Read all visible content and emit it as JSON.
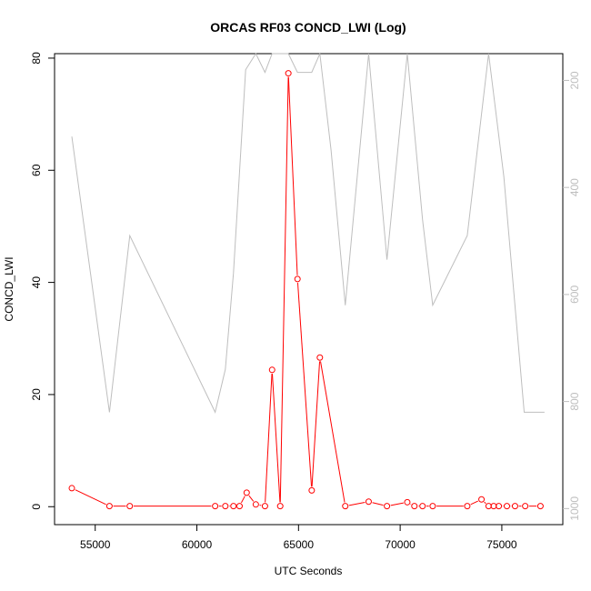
{
  "chart_data": {
    "type": "line",
    "title": "ORCAS RF03 CONCD_LWI (Log)",
    "xlabel": "UTC Seconds",
    "ylabel": "CONCD_LWI",
    "xlim": [
      53000,
      78000
    ],
    "ylim": [
      -3.2,
      80.8
    ],
    "x_ticks": [
      55000,
      60000,
      65000,
      70000,
      75000
    ],
    "y_ticks": [
      0,
      20,
      40,
      60,
      80
    ],
    "right_axis": {
      "ylim": [
        1030,
        150
      ],
      "ticks": [
        200,
        400,
        600,
        800,
        1000
      ],
      "color": "#bebebe",
      "reversed": true
    },
    "grid": false,
    "series": [
      {
        "color": "#ff0000",
        "markers": "open-circle",
        "axis": "left",
        "x": [
          53850,
          55700,
          56700,
          60900,
          61400,
          61800,
          62100,
          62450,
          62900,
          63350,
          63700,
          64100,
          64500,
          64950,
          65650,
          66050,
          67300,
          68450,
          69350,
          70350,
          70700,
          71100,
          71600,
          73300,
          74000,
          74350,
          74600,
          74850,
          75250,
          75650,
          76150,
          76900
        ],
        "y": [
          3.3,
          0.1,
          0.1,
          0.1,
          0.1,
          0.1,
          0.1,
          2.5,
          0.4,
          0.1,
          24.4,
          0.1,
          77.3,
          40.6,
          2.9,
          26.6,
          0.1,
          0.9,
          0.1,
          0.8,
          0.1,
          0.1,
          0.1,
          0.1,
          1.3,
          0.1,
          0.1,
          0.1,
          0.1,
          0.1,
          0.1,
          0.1
        ]
      },
      {
        "color": "#bebebe",
        "markers": "none",
        "axis": "right",
        "x": [
          53850,
          55700,
          56700,
          60900,
          61400,
          61800,
          62400,
          62900,
          63350,
          63700,
          64100,
          64500,
          64950,
          65650,
          66050,
          66600,
          67300,
          68450,
          69350,
          70350,
          71100,
          71600,
          73300,
          74350,
          75100,
          76100,
          77100
        ],
        "y": [
          305,
          820,
          490,
          820,
          740,
          560,
          180,
          110,
          185,
          110,
          110,
          110,
          185,
          185,
          110,
          330,
          620,
          120,
          535,
          110,
          460,
          620,
          490,
          110,
          380,
          820,
          820
        ]
      }
    ]
  }
}
